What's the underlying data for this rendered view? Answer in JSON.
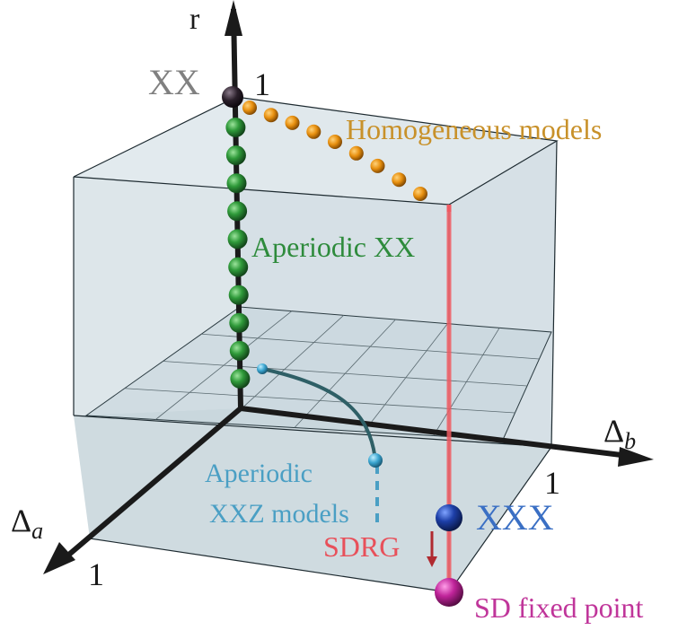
{
  "axes": {
    "r": "r",
    "delta_a": "Δ",
    "delta_a_sub": "a",
    "delta_b": "Δ",
    "delta_b_sub": "b"
  },
  "ticks": {
    "r_one": "1",
    "a_one": "1",
    "b_one": "1"
  },
  "labels": {
    "xx": "XX",
    "homogeneous": "Homogeneous models",
    "aperiodic_xx": "Aperiodic XX",
    "aperiodic_xxz_line1": "Aperiodic",
    "aperiodic_xxz_line2": "XXZ models",
    "xxx": "XXX",
    "sdrg": "SDRG",
    "sd_fixed_point": "SD fixed point"
  },
  "colors": {
    "homogeneous": "#c8912a",
    "aperiodic_xx": "#2e8b3c",
    "aperiodic_xxz": "#4a9fc4",
    "xxx": "#3a6fc4",
    "sdrg": "#e8505a",
    "sd_fixed_point": "#c0359a",
    "xx": "#808080"
  },
  "point_counts": {
    "homogeneous_dots": 9,
    "aperiodic_xx_spheres": 10
  }
}
